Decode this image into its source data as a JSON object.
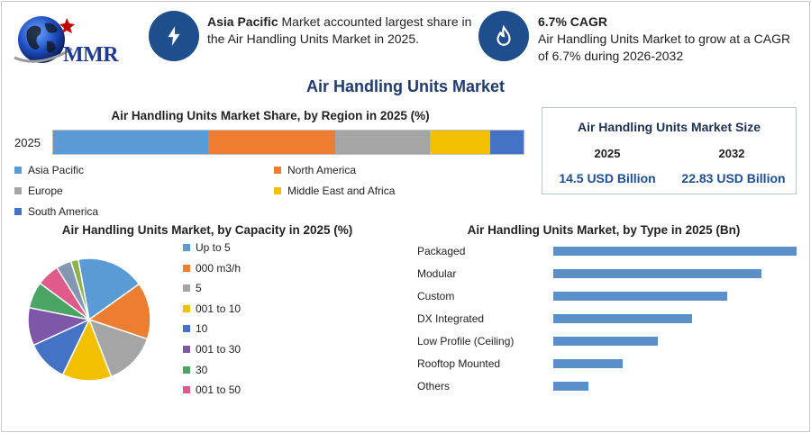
{
  "logo": {
    "text": "MMR"
  },
  "info": [
    {
      "bold": "Asia Pacific",
      "text": " Market accounted largest share in the Air Handling Units Market in 2025.",
      "icon": "lightning-icon"
    },
    {
      "bold": "6.7% CAGR",
      "text": "Air Handling Units Market to grow at a CAGR of 6.7% during 2026-2032",
      "icon": "growth-icon"
    }
  ],
  "main_title": "Air Handling Units Market",
  "size_box": {
    "title": "Air Handling Units Market Size",
    "year1": "2025",
    "year2": "2032",
    "value1": "14.5 USD Billion",
    "value2": "22.83 USD Billion"
  },
  "colors": {
    "accent": "#1f4e8c",
    "bar": "#5b8fc8"
  },
  "chart_data": [
    {
      "type": "bar",
      "stacked": true,
      "orientation": "horizontal",
      "title": "Air Handling Units Market Share, by Region in 2025 (%)",
      "categories": [
        "2025"
      ],
      "series": [
        {
          "name": "Asia Pacific",
          "values": [
            33
          ],
          "color": "#5b9bd5"
        },
        {
          "name": "North America",
          "values": [
            27
          ],
          "color": "#ed7d31"
        },
        {
          "name": "Europe",
          "values": [
            20
          ],
          "color": "#a5a5a5"
        },
        {
          "name": "Middle East and Africa",
          "values": [
            13
          ],
          "color": "#f2c000"
        },
        {
          "name": "South America",
          "values": [
            7
          ],
          "color": "#4472c4"
        }
      ]
    },
    {
      "type": "pie",
      "title": "Air Handling Units Market, by Capacity in 2025 (%)",
      "slices": [
        {
          "name": "Up to 5",
          "value": 18,
          "color": "#5b9bd5"
        },
        {
          "name": "000 m3/h",
          "value": 15,
          "color": "#ed7d31"
        },
        {
          "name": "5",
          "value": 14,
          "color": "#a5a5a5"
        },
        {
          "name": "001 to 10",
          "value": 13,
          "color": "#f2c000"
        },
        {
          "name": "10",
          "value": 11,
          "color": "#4472c4"
        },
        {
          "name": "001 to 30",
          "value": 10,
          "color": "#7e57a8"
        },
        {
          "name": "30",
          "value": 7,
          "color": "#4aa564"
        },
        {
          "name": "001 to 50",
          "value": 6,
          "color": "#e05a8a"
        },
        {
          "name": "",
          "value": 4,
          "color": "#8497b0"
        },
        {
          "name": "",
          "value": 2,
          "color": "#8fb34a"
        }
      ]
    },
    {
      "type": "bar",
      "orientation": "horizontal",
      "title": "Air Handling Units Market, by Type in 2025 (Bn)",
      "categories": [
        "Packaged",
        "Modular",
        "Custom",
        "DX Integrated",
        "Low Profile (Ceiling)",
        "Rooftop Mounted",
        "Others"
      ],
      "values": [
        3.5,
        3.0,
        2.5,
        2.0,
        1.5,
        1.0,
        0.5
      ]
    }
  ]
}
